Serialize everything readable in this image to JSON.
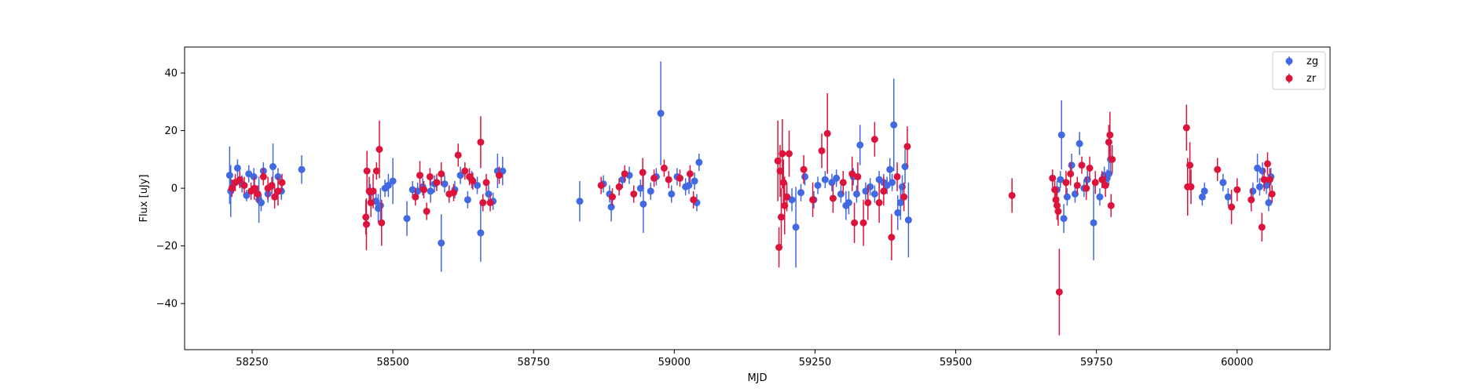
{
  "chart_data": {
    "type": "scatter",
    "xlabel": "MJD",
    "ylabel": "Flux [uJy]",
    "xlim": [
      58130,
      60165
    ],
    "ylim": [
      -56,
      49
    ],
    "xticks": [
      58250,
      58500,
      58750,
      59000,
      59250,
      59500,
      59750,
      60000
    ],
    "yticks": [
      -40,
      -20,
      0,
      20,
      40
    ],
    "grid": false,
    "legend_position": "top-right",
    "series": [
      {
        "name": "zg",
        "color": "#4169e1",
        "points": [
          [
            58210,
            4.5,
            10
          ],
          [
            58212,
            -1,
            9
          ],
          [
            58224,
            7,
            3
          ],
          [
            58232,
            1.5,
            3
          ],
          [
            58240,
            -2.5,
            2
          ],
          [
            58244,
            5,
            3
          ],
          [
            58253,
            4,
            3
          ],
          [
            58262,
            -4,
            8
          ],
          [
            58266,
            -5,
            3
          ],
          [
            58270,
            6,
            3
          ],
          [
            58278,
            -2,
            3
          ],
          [
            58287,
            7.5,
            8
          ],
          [
            58296,
            4,
            3
          ],
          [
            58302,
            -1,
            3
          ],
          [
            58338,
            6.5,
            5
          ],
          [
            58460,
            -1.5,
            3
          ],
          [
            58470,
            -4.5,
            3
          ],
          [
            58474,
            -7,
            5
          ],
          [
            58478,
            -6,
            6
          ],
          [
            58486,
            0,
            3
          ],
          [
            58492,
            1,
            4
          ],
          [
            58500,
            2.5,
            8
          ],
          [
            58525,
            -10.5,
            6
          ],
          [
            58535,
            -0.5,
            3
          ],
          [
            58544,
            -1,
            3
          ],
          [
            58553,
            0.5,
            3
          ],
          [
            58567,
            -1,
            4
          ],
          [
            58574,
            1.5,
            3
          ],
          [
            58586,
            -19,
            10
          ],
          [
            58592,
            1.5,
            3
          ],
          [
            58610,
            -0.5,
            3
          ],
          [
            58620,
            4.5,
            3
          ],
          [
            58633,
            -4,
            3
          ],
          [
            58640,
            3,
            3
          ],
          [
            58650,
            1,
            3
          ],
          [
            58656,
            -15.5,
            10
          ],
          [
            58670,
            -2,
            3
          ],
          [
            58678,
            -4.5,
            3
          ],
          [
            58686,
            6,
            6
          ],
          [
            58695,
            6,
            5
          ],
          [
            58832,
            -4.5,
            7
          ],
          [
            58874,
            1.5,
            3
          ],
          [
            58885,
            -2,
            3
          ],
          [
            58888,
            -6.5,
            5
          ],
          [
            58908,
            3,
            3
          ],
          [
            58920,
            4.5,
            3
          ],
          [
            58940,
            0,
            3
          ],
          [
            58945,
            -5.5,
            10
          ],
          [
            58958,
            -1,
            3
          ],
          [
            58968,
            4,
            3
          ],
          [
            58976,
            26,
            18
          ],
          [
            58995,
            -2,
            3
          ],
          [
            59005,
            4,
            3
          ],
          [
            59020,
            0.5,
            3
          ],
          [
            59026,
            1,
            3
          ],
          [
            59036,
            2.5,
            3
          ],
          [
            59040,
            -5,
            3
          ],
          [
            59044,
            9,
            3
          ],
          [
            59200,
            -3,
            3
          ],
          [
            59209,
            -4,
            4
          ],
          [
            59216,
            -13.5,
            14
          ],
          [
            59225,
            -1.5,
            3
          ],
          [
            59232,
            4,
            3
          ],
          [
            59248,
            -4,
            3
          ],
          [
            59255,
            1,
            3
          ],
          [
            59268,
            3,
            3
          ],
          [
            59280,
            2,
            3
          ],
          [
            59288,
            3.5,
            3
          ],
          [
            59296,
            -2,
            3
          ],
          [
            59305,
            -6,
            5
          ],
          [
            59310,
            -5,
            4
          ],
          [
            59318,
            4,
            3
          ],
          [
            59324,
            -2,
            3
          ],
          [
            59330,
            15,
            7
          ],
          [
            59340,
            -1,
            3
          ],
          [
            59348,
            0.5,
            3
          ],
          [
            59356,
            -2,
            3
          ],
          [
            59364,
            3,
            3
          ],
          [
            59372,
            2,
            3
          ],
          [
            59378,
            1,
            3
          ],
          [
            59383,
            6.5,
            4
          ],
          [
            59387,
            2,
            3
          ],
          [
            59390,
            22,
            16
          ],
          [
            59397,
            -8.5,
            6
          ],
          [
            59402,
            -5,
            6
          ],
          [
            59405,
            0.5,
            4
          ],
          [
            59410,
            7.5,
            6
          ],
          [
            59416,
            -11,
            13
          ],
          [
            59680,
            -0.5,
            3
          ],
          [
            59686,
            3,
            3
          ],
          [
            59688,
            18.5,
            12
          ],
          [
            59692,
            -10.5,
            5
          ],
          [
            59698,
            -3,
            3
          ],
          [
            59706,
            8,
            4
          ],
          [
            59712,
            -2,
            3
          ],
          [
            59720,
            15.5,
            4
          ],
          [
            59728,
            0,
            3
          ],
          [
            59734,
            3,
            3
          ],
          [
            59745,
            -12,
            13
          ],
          [
            59756,
            -3,
            3
          ],
          [
            59764,
            4.5,
            3
          ],
          [
            59769,
            3.5,
            3
          ],
          [
            59772,
            5,
            4
          ],
          [
            59775,
            10,
            5
          ],
          [
            59938,
            -3,
            3
          ],
          [
            59942,
            -1,
            3
          ],
          [
            59975,
            2,
            3
          ],
          [
            59984,
            -3,
            3
          ],
          [
            60028,
            -1,
            3
          ],
          [
            60036,
            7,
            5
          ],
          [
            60040,
            0.5,
            3
          ],
          [
            60045,
            6,
            3
          ],
          [
            60052,
            1,
            3
          ],
          [
            60056,
            -5,
            3
          ],
          [
            60060,
            4,
            3
          ]
        ]
      },
      {
        "name": "zr",
        "color": "#dc143c",
        "points": [
          [
            58214,
            0,
            3
          ],
          [
            58220,
            2,
            3
          ],
          [
            58228,
            3,
            3
          ],
          [
            58236,
            1,
            3
          ],
          [
            58248,
            -1,
            3
          ],
          [
            58254,
            0,
            4
          ],
          [
            58260,
            -2,
            3
          ],
          [
            58270,
            4,
            3
          ],
          [
            58278,
            0,
            4
          ],
          [
            58285,
            1,
            3
          ],
          [
            58290,
            -3,
            4
          ],
          [
            58296,
            -1,
            5
          ],
          [
            58303,
            2,
            3
          ],
          [
            58452,
            -10,
            6
          ],
          [
            58453,
            -12.5,
            9
          ],
          [
            58454,
            6,
            7
          ],
          [
            58458,
            -1,
            5
          ],
          [
            58461,
            -5,
            5
          ],
          [
            58465,
            -1,
            6
          ],
          [
            58471,
            6,
            3
          ],
          [
            58476,
            13.5,
            10
          ],
          [
            58480,
            -12,
            8
          ],
          [
            58540,
            -3,
            3
          ],
          [
            58548,
            4.5,
            5
          ],
          [
            58555,
            -0.5,
            3
          ],
          [
            58560,
            -8,
            3
          ],
          [
            58566,
            4,
            3
          ],
          [
            58578,
            2,
            3
          ],
          [
            58586,
            5,
            4
          ],
          [
            58600,
            -2,
            3
          ],
          [
            58608,
            -1.5,
            3
          ],
          [
            58616,
            11.5,
            4
          ],
          [
            58628,
            6,
            3
          ],
          [
            58636,
            4,
            3
          ],
          [
            58642,
            2.5,
            3
          ],
          [
            58656,
            16,
            9
          ],
          [
            58660,
            -5,
            3
          ],
          [
            58666,
            2,
            3
          ],
          [
            58673,
            -5,
            3
          ],
          [
            58689,
            4.5,
            3
          ],
          [
            58870,
            1,
            3
          ],
          [
            58890,
            -3,
            3
          ],
          [
            58902,
            0.5,
            3
          ],
          [
            58912,
            5,
            3
          ],
          [
            58928,
            -2,
            3
          ],
          [
            58944,
            5.5,
            5
          ],
          [
            58964,
            3.5,
            3
          ],
          [
            58982,
            7,
            3
          ],
          [
            58990,
            3,
            3
          ],
          [
            59010,
            3.5,
            3
          ],
          [
            59028,
            5,
            3
          ],
          [
            59034,
            -4,
            3
          ],
          [
            59184,
            9.5,
            14
          ],
          [
            59186,
            -20.5,
            7
          ],
          [
            59188,
            6,
            9
          ],
          [
            59190,
            -10,
            10
          ],
          [
            59192,
            12,
            12
          ],
          [
            59194,
            2,
            8
          ],
          [
            59196,
            -6,
            10
          ],
          [
            59200,
            -3,
            5
          ],
          [
            59204,
            12,
            8
          ],
          [
            59230,
            6.5,
            5
          ],
          [
            59246,
            -4,
            6
          ],
          [
            59262,
            13,
            6
          ],
          [
            59272,
            19,
            14
          ],
          [
            59282,
            -3.5,
            5
          ],
          [
            59300,
            2,
            4
          ],
          [
            59316,
            5,
            6
          ],
          [
            59320,
            -12,
            7
          ],
          [
            59326,
            4,
            5
          ],
          [
            59336,
            -12,
            8
          ],
          [
            59344,
            -5,
            6
          ],
          [
            59356,
            17,
            6
          ],
          [
            59364,
            -5,
            7
          ],
          [
            59372,
            -1,
            5
          ],
          [
            59386,
            -17,
            8
          ],
          [
            59396,
            4,
            5
          ],
          [
            59408,
            -3,
            5
          ],
          [
            59414,
            14.5,
            7
          ],
          [
            59600,
            -2.5,
            6
          ],
          [
            59672,
            3.5,
            3
          ],
          [
            59676,
            -0.5,
            3
          ],
          [
            59678,
            -4,
            3
          ],
          [
            59680,
            -6,
            5
          ],
          [
            59682,
            -8,
            5
          ],
          [
            59684,
            -36,
            15
          ],
          [
            59696,
            2,
            4
          ],
          [
            59704,
            5,
            4
          ],
          [
            59716,
            1,
            3
          ],
          [
            59724,
            8,
            3
          ],
          [
            59732,
            0,
            4
          ],
          [
            59738,
            7,
            4
          ],
          [
            59748,
            2,
            4
          ],
          [
            59760,
            3,
            3
          ],
          [
            59766,
            1,
            4
          ],
          [
            59772,
            16,
            6
          ],
          [
            59774,
            18.5,
            8
          ],
          [
            59776,
            -6,
            4
          ],
          [
            59778,
            10,
            5
          ],
          [
            59910,
            21,
            8
          ],
          [
            59912,
            0.5,
            10
          ],
          [
            59916,
            8,
            8
          ],
          [
            59918,
            0.5,
            6
          ],
          [
            59965,
            6.5,
            4
          ],
          [
            59990,
            -6.5,
            6
          ],
          [
            60000,
            -0.5,
            4
          ],
          [
            60025,
            -4,
            4
          ],
          [
            60044,
            -13.5,
            5
          ],
          [
            60048,
            3,
            4
          ],
          [
            60054,
            8.5,
            4
          ],
          [
            60058,
            3,
            4
          ],
          [
            60062,
            -2,
            3
          ]
        ]
      }
    ]
  }
}
